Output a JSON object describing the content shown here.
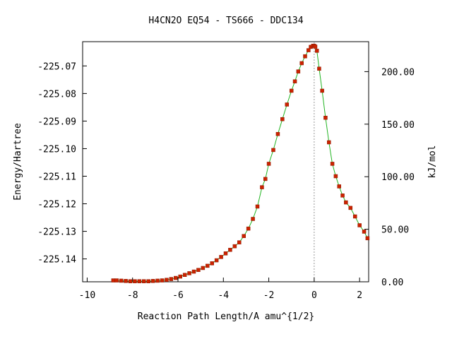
{
  "chart_data": {
    "type": "line",
    "title": "H4CN2O   EQ54 - TS666 - DDC134",
    "xlabel": "Reaction Path Length/A amu^{1/2}",
    "ylabel": "Energy/Hartree",
    "y2label": "kJ/mol",
    "xlim": [
      -10.2,
      2.4
    ],
    "ylim": [
      -225.1483,
      -225.0612
    ],
    "y2lim": [
      0.0,
      228.5
    ],
    "x_ticks": [
      -10,
      -8,
      -6,
      -4,
      -2,
      0,
      2
    ],
    "x_tick_labels": [
      "-10",
      "-8",
      "-6",
      "-4",
      "-2",
      "0",
      "2"
    ],
    "y_ticks": [
      -225.07,
      -225.08,
      -225.09,
      -225.1,
      -225.11,
      -225.12,
      -225.13,
      -225.14
    ],
    "y_tick_labels": [
      "-225.07",
      "-225.08",
      "-225.09",
      "-225.10",
      "-225.11",
      "-225.12",
      "-225.13",
      "-225.14"
    ],
    "y2_ticks": [
      200.0,
      150.0,
      100.0,
      50.0,
      0.0
    ],
    "y2_tick_labels": [
      "200.00",
      "150.00",
      "100.00",
      "50.00",
      "0.00"
    ],
    "ts_marker_x": 0.0,
    "grid": false,
    "colors": {
      "curve": "#22b422",
      "points": "#cc2200",
      "ts_line": "#999999",
      "frame": "#000000"
    },
    "series": [
      {
        "x": [
          -8.85,
          -8.7,
          -8.5,
          -8.3,
          -8.1,
          -7.9,
          -7.7,
          -7.5,
          -7.3,
          -7.1,
          -6.9,
          -6.7,
          -6.5,
          -6.3,
          -6.1,
          -5.9,
          -5.7,
          -5.5,
          -5.3,
          -5.1,
          -4.9,
          -4.7,
          -4.5,
          -4.3,
          -4.1,
          -3.9,
          -3.7,
          -3.5,
          -3.3,
          -3.1,
          -2.9,
          -2.7,
          -2.5,
          -2.3,
          -2.15,
          -2.0,
          -1.8,
          -1.6,
          -1.4,
          -1.2,
          -1.0,
          -0.85,
          -0.7,
          -0.55,
          -0.4,
          -0.25,
          -0.15,
          -0.05,
          0.0,
          0.05,
          0.12,
          0.22,
          0.35,
          0.5,
          0.65,
          0.8,
          0.95,
          1.1,
          1.25,
          1.4,
          1.6,
          1.8,
          2.0,
          2.2,
          2.35
        ],
        "y": [
          -225.1478,
          -225.1478,
          -225.1479,
          -225.148,
          -225.1481,
          -225.1481,
          -225.1481,
          -225.1481,
          -225.1481,
          -225.148,
          -225.1479,
          -225.1478,
          -225.1476,
          -225.1473,
          -225.1469,
          -225.1464,
          -225.1458,
          -225.1452,
          -225.1446,
          -225.144,
          -225.1433,
          -225.1425,
          -225.1416,
          -225.1405,
          -225.1393,
          -225.138,
          -225.1367,
          -225.1354,
          -225.134,
          -225.1317,
          -225.129,
          -225.1255,
          -225.121,
          -225.114,
          -225.111,
          -225.1055,
          -225.1005,
          -225.0947,
          -225.0893,
          -225.084,
          -225.079,
          -225.0756,
          -225.072,
          -225.069,
          -225.0665,
          -225.0643,
          -225.0631,
          -225.0627,
          -225.0627,
          -225.063,
          -225.0645,
          -225.071,
          -225.079,
          -225.0888,
          -225.0977,
          -225.1055,
          -225.11,
          -225.1137,
          -225.117,
          -225.1195,
          -225.1215,
          -225.1246,
          -225.1278,
          -225.1301,
          -225.1325
        ]
      }
    ]
  }
}
